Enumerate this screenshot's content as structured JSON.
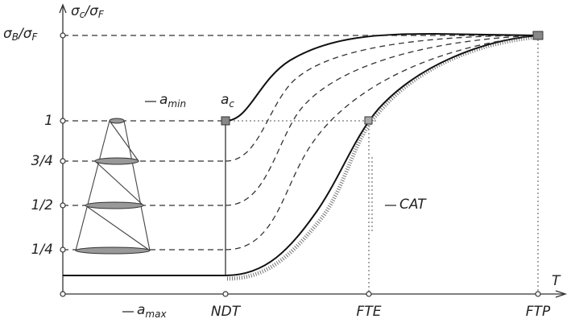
{
  "y_axis": {
    "label": {
      "main": "σ",
      "sub": "c",
      "sep": "/σ",
      "sub2": "F"
    },
    "top_level": {
      "main": "σ",
      "sub": "B",
      "sep": "/σ",
      "sub2": "F"
    },
    "levels": [
      "1",
      "3/4",
      "1/2",
      "1/4"
    ]
  },
  "x_axis": {
    "label": "T",
    "marks": [
      "NDT",
      "FTE",
      "FTP"
    ]
  },
  "annotations": {
    "a_min": {
      "main": "a",
      "sub": "min"
    },
    "a_c": {
      "main": "a",
      "sub": "c"
    },
    "a_max": {
      "main": "a",
      "sub": "max"
    },
    "cat": "CAT"
  }
}
